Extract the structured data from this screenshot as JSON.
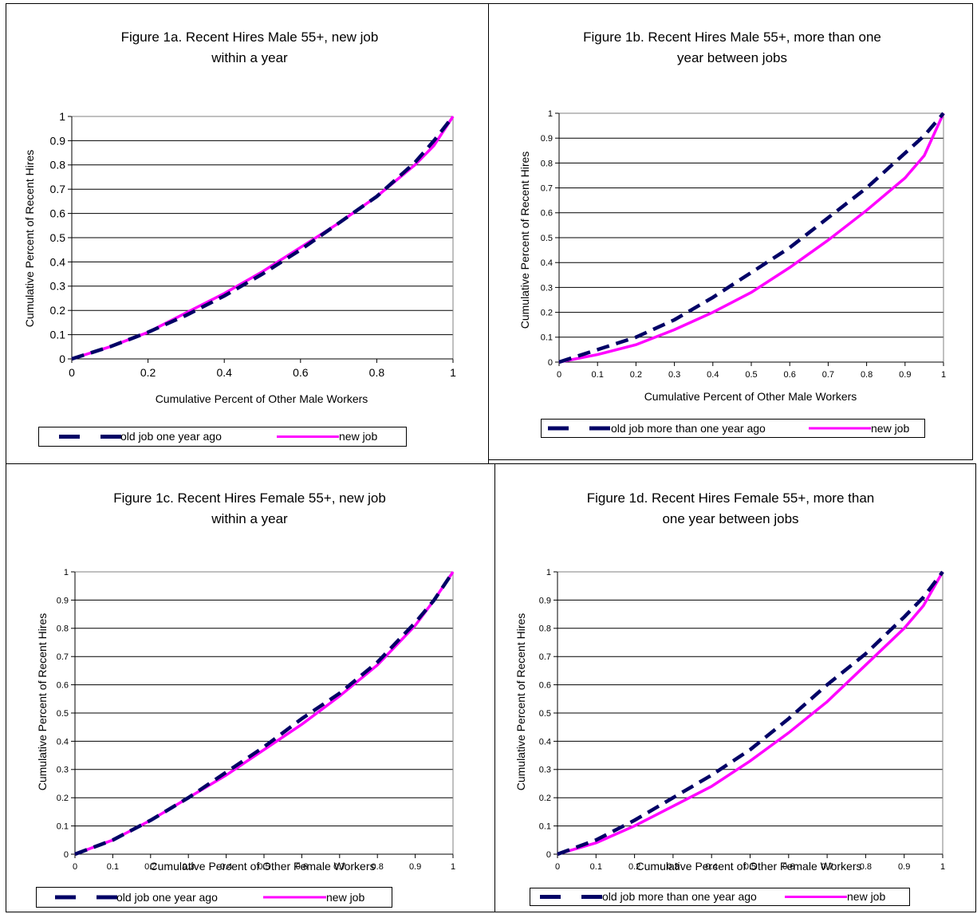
{
  "colors": {
    "old_job": "#000066",
    "new_job": "#ff00ff"
  },
  "chart_data": [
    {
      "type": "line",
      "title": "Figure 1a. Recent Hires Male 55+, new job within a year",
      "title_lines": [
        "Figure 1a. Recent Hires Male 55+, new job",
        "within a year"
      ],
      "xlabel": "Cumulative Percent of Other Male Workers",
      "ylabel": "Cumulative Percent of Recent Hires",
      "xlim": [
        0,
        1
      ],
      "ylim": [
        0,
        1
      ],
      "xticks": [
        "0",
        "0.2",
        "0.4",
        "0.6",
        "0.8",
        "1"
      ],
      "yticks": [
        "0",
        "0.1",
        "0.2",
        "0.3",
        "0.4",
        "0.5",
        "0.6",
        "0.7",
        "0.8",
        "0.9",
        "1"
      ],
      "grid": "horizontal",
      "legend": "bottom",
      "series": [
        {
          "name": "old job one year ago",
          "style": "dashed",
          "x": [
            0,
            0.1,
            0.2,
            0.3,
            0.4,
            0.5,
            0.6,
            0.7,
            0.8,
            0.9,
            0.95,
            1
          ],
          "y": [
            0,
            0.05,
            0.11,
            0.18,
            0.26,
            0.35,
            0.45,
            0.56,
            0.67,
            0.81,
            0.9,
            1
          ]
        },
        {
          "name": "new job",
          "style": "solid",
          "x": [
            0,
            0.1,
            0.2,
            0.3,
            0.4,
            0.5,
            0.6,
            0.7,
            0.8,
            0.9,
            0.95,
            1
          ],
          "y": [
            0,
            0.05,
            0.11,
            0.19,
            0.27,
            0.36,
            0.46,
            0.56,
            0.67,
            0.8,
            0.88,
            1
          ]
        }
      ]
    },
    {
      "type": "line",
      "title": "Figure 1b. Recent Hires Male 55+, more than one year between jobs",
      "title_lines": [
        "Figure 1b. Recent Hires Male 55+, more than one",
        "year between jobs"
      ],
      "xlabel": "Cumulative Percent of Other Male Workers",
      "ylabel": "Cumulative Percent of Recent Hires",
      "xlim": [
        0,
        1
      ],
      "ylim": [
        0,
        1
      ],
      "xticks": [
        "0",
        "0.1",
        "0.2",
        "0.3",
        "0.4",
        "0.5",
        "0.6",
        "0.7",
        "0.8",
        "0.9",
        "1"
      ],
      "yticks": [
        "0",
        "0.1",
        "0.2",
        "0.3",
        "0.4",
        "0.5",
        "0.6",
        "0.7",
        "0.8",
        "0.9",
        "1"
      ],
      "grid": "horizontal",
      "legend": "bottom",
      "series": [
        {
          "name": "old job more than one year ago",
          "style": "dashed",
          "x": [
            0,
            0.1,
            0.2,
            0.3,
            0.4,
            0.5,
            0.6,
            0.7,
            0.8,
            0.9,
            0.95,
            1
          ],
          "y": [
            0,
            0.05,
            0.1,
            0.17,
            0.26,
            0.36,
            0.46,
            0.58,
            0.7,
            0.84,
            0.91,
            1
          ]
        },
        {
          "name": "new job",
          "style": "solid",
          "x": [
            0,
            0.1,
            0.2,
            0.3,
            0.4,
            0.5,
            0.6,
            0.7,
            0.8,
            0.9,
            0.95,
            1
          ],
          "y": [
            0,
            0.03,
            0.07,
            0.13,
            0.2,
            0.28,
            0.38,
            0.49,
            0.61,
            0.74,
            0.83,
            1
          ]
        }
      ]
    },
    {
      "type": "line",
      "title": "Figure 1c. Recent Hires Female 55+, new job within a year",
      "title_lines": [
        "Figure 1c. Recent Hires Female 55+, new job",
        "within a year"
      ],
      "xlabel": "Cumulative Percent of Other Female Workers",
      "ylabel": "Cumulative Percent of Recent Hires",
      "xlim": [
        0,
        1
      ],
      "ylim": [
        0,
        1
      ],
      "xticks": [
        "0",
        "0.1",
        "0.2",
        "0.3",
        "0.4",
        "0.5",
        "0.6",
        "0.7",
        "0.8",
        "0.9",
        "1"
      ],
      "yticks": [
        "0",
        "0.1",
        "0.2",
        "0.3",
        "0.4",
        "0.5",
        "0.6",
        "0.7",
        "0.8",
        "0.9",
        "1"
      ],
      "grid": "horizontal",
      "legend": "bottom",
      "series": [
        {
          "name": "old job one year ago",
          "style": "dashed",
          "x": [
            0,
            0.1,
            0.2,
            0.3,
            0.4,
            0.5,
            0.6,
            0.7,
            0.8,
            0.9,
            0.95,
            1
          ],
          "y": [
            0,
            0.05,
            0.12,
            0.2,
            0.29,
            0.38,
            0.48,
            0.57,
            0.68,
            0.82,
            0.9,
            1
          ]
        },
        {
          "name": "new job",
          "style": "solid",
          "x": [
            0,
            0.1,
            0.2,
            0.3,
            0.4,
            0.5,
            0.6,
            0.7,
            0.8,
            0.9,
            0.95,
            1
          ],
          "y": [
            0,
            0.05,
            0.12,
            0.2,
            0.28,
            0.37,
            0.46,
            0.56,
            0.67,
            0.81,
            0.9,
            1
          ]
        }
      ]
    },
    {
      "type": "line",
      "title": "Figure 1d. Recent Hires Female 55+, more than one year between jobs",
      "title_lines": [
        "Figure 1d. Recent Hires Female 55+, more than",
        "one year between jobs"
      ],
      "xlabel": "Cumulative Percent of Other Female Workers",
      "ylabel": "Cumulative Percent of Recent Hires",
      "xlim": [
        0,
        1
      ],
      "ylim": [
        0,
        1
      ],
      "xticks": [
        "0",
        "0.1",
        "0.2",
        "0.3",
        "0.4",
        "0.5",
        "0.6",
        "0.7",
        "0.8",
        "0.9",
        "1"
      ],
      "yticks": [
        "0",
        "0.1",
        "0.2",
        "0.3",
        "0.4",
        "0.5",
        "0.6",
        "0.7",
        "0.8",
        "0.9",
        "1"
      ],
      "grid": "horizontal",
      "legend": "bottom",
      "series": [
        {
          "name": "old job more than one year ago",
          "style": "dashed",
          "x": [
            0,
            0.1,
            0.2,
            0.3,
            0.4,
            0.5,
            0.6,
            0.7,
            0.8,
            0.9,
            0.95,
            1
          ],
          "y": [
            0,
            0.05,
            0.12,
            0.2,
            0.28,
            0.37,
            0.48,
            0.6,
            0.71,
            0.84,
            0.91,
            1
          ]
        },
        {
          "name": "new job",
          "style": "solid",
          "x": [
            0,
            0.1,
            0.2,
            0.3,
            0.4,
            0.5,
            0.6,
            0.7,
            0.8,
            0.9,
            0.95,
            1
          ],
          "y": [
            0,
            0.04,
            0.1,
            0.17,
            0.24,
            0.33,
            0.43,
            0.54,
            0.67,
            0.8,
            0.88,
            1
          ]
        }
      ]
    }
  ]
}
